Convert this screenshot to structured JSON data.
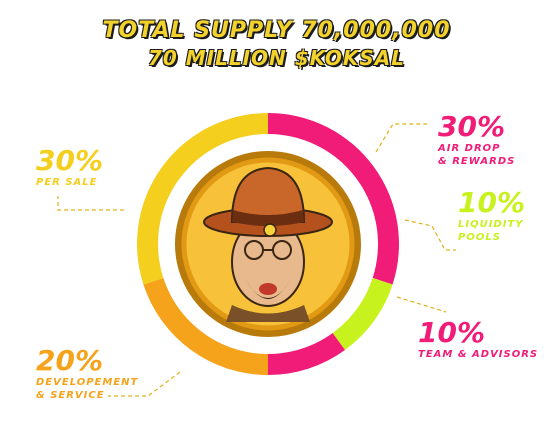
{
  "header": {
    "line1": "TOTAL SUPPLY 70,000,000",
    "line2": "70 MILLION $KOKSAL"
  },
  "colors": {
    "yellow": "#f4cf1e",
    "orange": "#f6a31c",
    "magenta": "#f01c78",
    "lime": "#c8f21e",
    "coin_dark": "#b87a0a",
    "coin_light": "#f7c23a"
  },
  "chart_data": {
    "type": "pie",
    "slices": [
      {
        "pct": "30%",
        "value": 30,
        "lines": [
          "AIR DROP",
          "& REWARDS"
        ],
        "color": "#f01c78"
      },
      {
        "pct": "10%",
        "value": 10,
        "lines": [
          "LIQUIDITY",
          "POOLS"
        ],
        "color": "#c8f21e"
      },
      {
        "pct": "10%",
        "value": 10,
        "lines": [
          "TEAM & ADVISORS"
        ],
        "color": "#f01c78"
      },
      {
        "pct": "20%",
        "value": 20,
        "lines": [
          "DEVELOPEMENT",
          "& SERVICE"
        ],
        "color": "#f6a31c"
      },
      {
        "pct": "30%",
        "value": 30,
        "lines": [
          "PER SALE"
        ],
        "color": "#f4cf1e"
      }
    ]
  },
  "icons": {
    "center": "coin-with-fedora-mascot-icon"
  }
}
